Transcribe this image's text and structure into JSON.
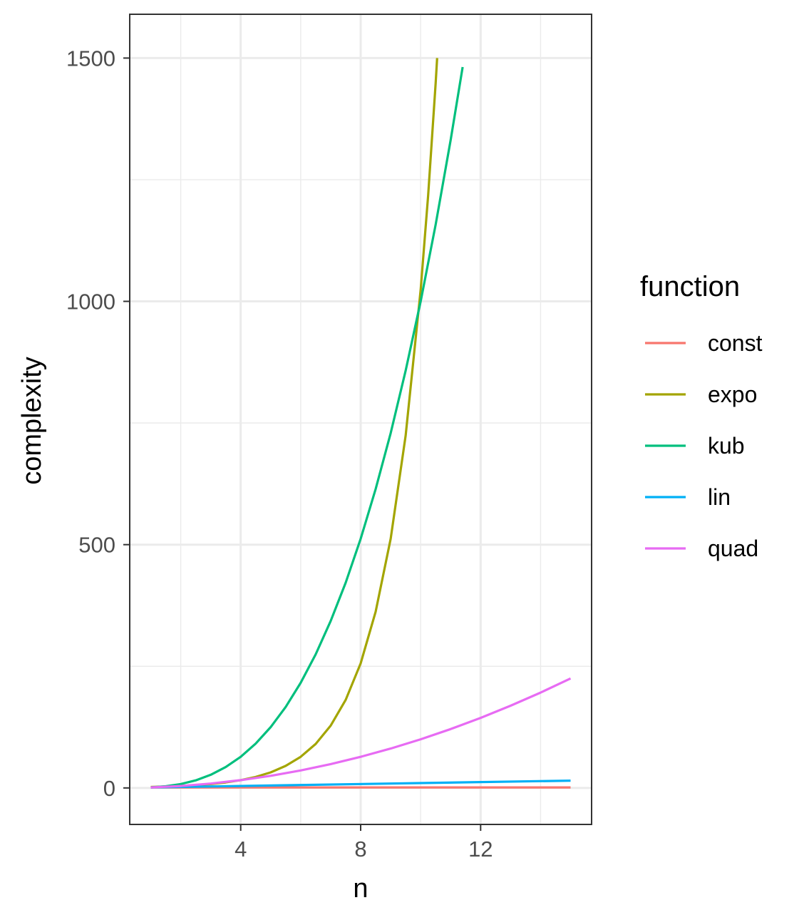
{
  "chart_data": {
    "type": "line",
    "xlabel": "n",
    "ylabel": "complexity",
    "xlim": [
      0.3,
      15.7
    ],
    "ylim": [
      -75,
      1590
    ],
    "x_ticks": [
      4,
      8,
      12
    ],
    "x_tick_labels": [
      "4",
      "8",
      "12"
    ],
    "y_ticks": [
      0,
      500,
      1000,
      1500
    ],
    "y_tick_labels": [
      "0",
      "500",
      "1000",
      "1500"
    ],
    "grid": true,
    "legend": {
      "title": "function",
      "position": "right",
      "entries": [
        "const",
        "expo",
        "kub",
        "lin",
        "quad"
      ]
    },
    "series": [
      {
        "name": "const",
        "color": "#F8766D",
        "x": [
          1,
          2,
          3,
          4,
          5,
          6,
          7,
          8,
          9,
          10,
          11,
          12,
          13,
          14,
          15
        ],
        "y": [
          1,
          1,
          1,
          1,
          1,
          1,
          1,
          1,
          1,
          1,
          1,
          1,
          1,
          1,
          1
        ]
      },
      {
        "name": "expo",
        "color": "#A3A500",
        "x": [
          1,
          1.5,
          2,
          2.5,
          3,
          3.5,
          4,
          4.5,
          5,
          5.5,
          6,
          6.5,
          7,
          7.5,
          8,
          8.5,
          9,
          9.5,
          10,
          10.25,
          10.5,
          10.55
        ],
        "y": [
          2,
          2.8,
          4,
          5.7,
          8,
          11.3,
          16,
          22.6,
          32,
          45.3,
          64,
          90.5,
          128,
          181,
          256,
          362,
          512,
          724,
          1024,
          1218,
          1448,
          1500
        ]
      },
      {
        "name": "kub",
        "color": "#00BF7D",
        "x": [
          1,
          1.5,
          2,
          2.5,
          3,
          3.5,
          4,
          4.5,
          5,
          5.5,
          6,
          6.5,
          7,
          7.5,
          8,
          8.5,
          9,
          9.5,
          10,
          10.5,
          11,
          11.4
        ],
        "y": [
          1,
          3.4,
          8,
          15.6,
          27,
          42.9,
          64,
          91.1,
          125,
          166.4,
          216,
          274.6,
          343,
          421.9,
          512,
          614.1,
          729,
          857.4,
          1000,
          1157.6,
          1331,
          1481.5
        ]
      },
      {
        "name": "lin",
        "color": "#00B0F6",
        "x": [
          1,
          15
        ],
        "y": [
          1,
          15
        ]
      },
      {
        "name": "quad",
        "color": "#E76BF3",
        "x": [
          1,
          2,
          3,
          4,
          5,
          6,
          7,
          8,
          9,
          10,
          11,
          12,
          13,
          14,
          15
        ],
        "y": [
          1,
          4,
          9,
          16,
          25,
          36,
          49,
          64,
          81,
          100,
          121,
          144,
          169,
          196,
          225
        ]
      }
    ]
  }
}
